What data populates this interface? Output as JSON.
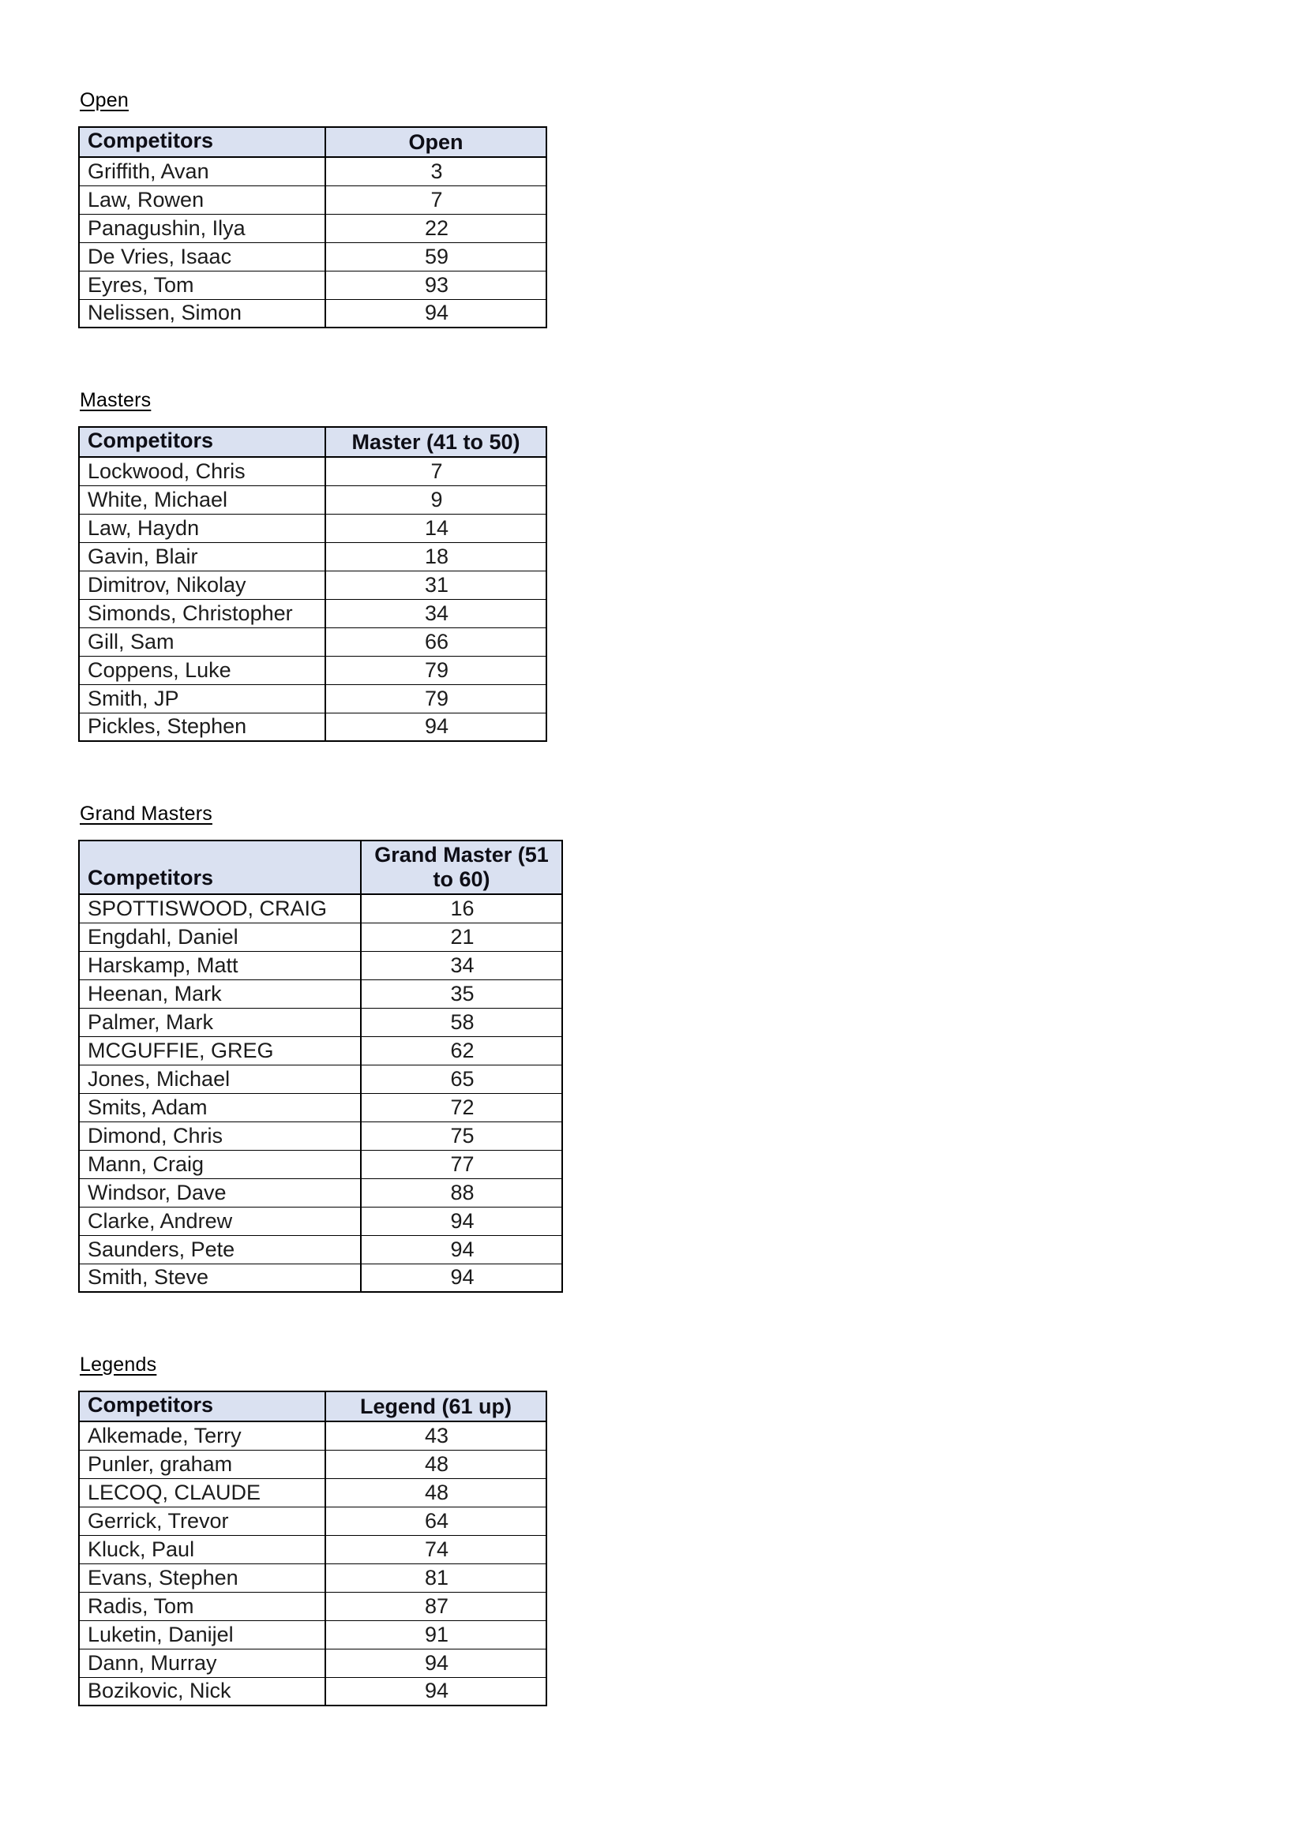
{
  "sections": [
    {
      "id": "open",
      "heading": "Open",
      "table": {
        "competitors_header": "Competitors",
        "score_header": "Open",
        "rows": [
          {
            "name": "Griffith, Avan",
            "score": "3"
          },
          {
            "name": "Law, Rowen",
            "score": "7"
          },
          {
            "name": "Panagushin, Ilya",
            "score": "22"
          },
          {
            "name": "De Vries, Isaac",
            "score": "59"
          },
          {
            "name": "Eyres, Tom",
            "score": "93"
          },
          {
            "name": "Nelissen, Simon",
            "score": "94"
          }
        ]
      }
    },
    {
      "id": "masters",
      "heading": "Masters",
      "table": {
        "competitors_header": "Competitors",
        "score_header": "Master (41 to 50)",
        "rows": [
          {
            "name": "Lockwood, Chris",
            "score": "7"
          },
          {
            "name": "White, Michael",
            "score": "9"
          },
          {
            "name": "Law, Haydn",
            "score": "14"
          },
          {
            "name": "Gavin, Blair",
            "score": "18"
          },
          {
            "name": "Dimitrov, Nikolay",
            "score": "31"
          },
          {
            "name": "Simonds, Christopher",
            "score": "34"
          },
          {
            "name": "Gill, Sam",
            "score": "66"
          },
          {
            "name": "Coppens, Luke",
            "score": "79"
          },
          {
            "name": "Smith, JP",
            "score": "79"
          },
          {
            "name": "Pickles, Stephen",
            "score": "94"
          }
        ]
      }
    },
    {
      "id": "grand-masters",
      "heading": "Grand Masters",
      "table": {
        "competitors_header": "Competitors",
        "score_header": "Grand Master (51 to 60)",
        "rows": [
          {
            "name": "SPOTTISWOOD, CRAIG",
            "score": "16"
          },
          {
            "name": "Engdahl, Daniel",
            "score": "21"
          },
          {
            "name": "Harskamp, Matt",
            "score": "34"
          },
          {
            "name": "Heenan, Mark",
            "score": "35"
          },
          {
            "name": "Palmer, Mark",
            "score": "58"
          },
          {
            "name": "MCGUFFIE, GREG",
            "score": "62"
          },
          {
            "name": "Jones, Michael",
            "score": "65"
          },
          {
            "name": "Smits, Adam",
            "score": "72"
          },
          {
            "name": "Dimond, Chris",
            "score": "75"
          },
          {
            "name": "Mann, Craig",
            "score": "77"
          },
          {
            "name": "Windsor, Dave",
            "score": "88"
          },
          {
            "name": "Clarke, Andrew",
            "score": "94"
          },
          {
            "name": "Saunders, Pete",
            "score": "94"
          },
          {
            "name": "Smith, Steve",
            "score": "94"
          }
        ]
      }
    },
    {
      "id": "legends",
      "heading": "Legends",
      "table": {
        "competitors_header": "Competitors",
        "score_header": "Legend (61 up)",
        "rows": [
          {
            "name": "Alkemade, Terry",
            "score": "43"
          },
          {
            "name": "Punler, graham",
            "score": "48"
          },
          {
            "name": "LECOQ, CLAUDE",
            "score": "48"
          },
          {
            "name": "Gerrick, Trevor",
            "score": "64"
          },
          {
            "name": "Kluck, Paul",
            "score": "74"
          },
          {
            "name": "Evans, Stephen",
            "score": "81"
          },
          {
            "name": "Radis, Tom",
            "score": "87"
          },
          {
            "name": "Luketin, Danijel",
            "score": "91"
          },
          {
            "name": "Dann, Murray",
            "score": "94"
          },
          {
            "name": "Bozikovic, Nick",
            "score": "94"
          }
        ]
      }
    }
  ],
  "colors": {
    "header_bg": "#dae1f1",
    "border": "#000000",
    "text": "#1c1c1c"
  }
}
